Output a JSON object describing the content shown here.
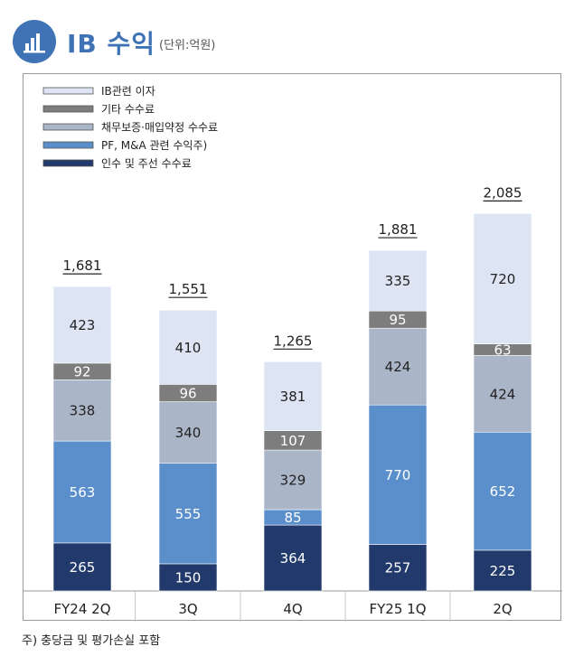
{
  "header": {
    "title": "IB 수익",
    "unit": "(단위:억원)",
    "icon": "bar-chart-icon"
  },
  "footnote": "주) 충당금 및 평가손실 포함",
  "chart_data": {
    "type": "bar",
    "stacked": true,
    "categories": [
      "FY24 2Q",
      "3Q",
      "4Q",
      "FY25 1Q",
      "2Q"
    ],
    "series": [
      {
        "name": "인수 및 주선 수수료",
        "color": "#223a6b",
        "label_color": "#ffffff",
        "values": [
          265,
          150,
          364,
          257,
          225
        ]
      },
      {
        "name": "PF, M&A 관련 수익주)",
        "color": "#5b8fcb",
        "label_color": "#ffffff",
        "values": [
          563,
          555,
          85,
          770,
          652
        ]
      },
      {
        "name": "채무보증·매입약정 수수료",
        "color": "#aab5c8",
        "label_color": "#222222",
        "values": [
          338,
          340,
          329,
          424,
          424
        ]
      },
      {
        "name": "기타 수수료",
        "color": "#7d7d7d",
        "label_color": "#ffffff",
        "values": [
          92,
          96,
          107,
          95,
          63
        ]
      },
      {
        "name": "IB관련 이자",
        "color": "#dde5f4",
        "label_color": "#222222",
        "values": [
          423,
          410,
          381,
          335,
          720
        ]
      }
    ],
    "totals": [
      "1,681",
      "1,551",
      "1,265",
      "1,881",
      "2,085"
    ],
    "legend_order": [
      "IB관련 이자",
      "기타 수수료",
      "채무보증·매입약정 수수료",
      "PF, M&A 관련 수익주)",
      "인수 및 주선 수수료"
    ],
    "legend_position": "top-left",
    "ylim": [
      0,
      2500
    ],
    "grid": false
  }
}
